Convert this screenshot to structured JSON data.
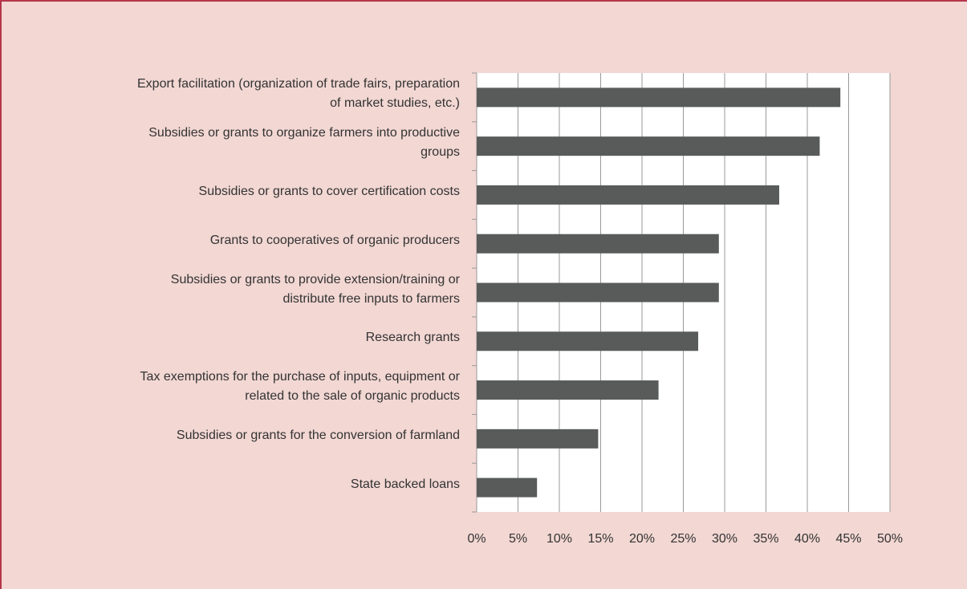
{
  "chart_data": {
    "type": "bar",
    "orientation": "horizontal",
    "categories": [
      "Export facilitation (organization of trade fairs, preparation\nof market studies, etc.)",
      "Subsidies or grants to organize farmers into productive\ngroups",
      "Subsidies or grants to cover certification costs",
      "Grants to cooperatives of organic producers",
      "Subsidies or grants to provide extension/training or\ndistribute free inputs to farmers",
      "Research grants",
      "Tax exemptions for the purchase of inputs, equipment or\nrelated to the sale of organic products",
      "Subsidies or grants for the conversion of farmland",
      "State backed loans"
    ],
    "values": [
      44,
      41.5,
      36.6,
      29.3,
      29.3,
      26.8,
      22,
      14.7,
      7.3
    ],
    "color": "#595b5b",
    "xlim": [
      0,
      50
    ],
    "xticks": [
      {
        "value": 0,
        "label": "0%"
      },
      {
        "value": 5,
        "label": "5%"
      },
      {
        "value": 10,
        "label": "10%"
      },
      {
        "value": 15,
        "label": "15%"
      },
      {
        "value": 20,
        "label": "20%"
      },
      {
        "value": 25,
        "label": "25%"
      },
      {
        "value": 30,
        "label": "30%"
      },
      {
        "value": 35,
        "label": "35%"
      },
      {
        "value": 40,
        "label": "40%"
      },
      {
        "value": 45,
        "label": "45%"
      },
      {
        "value": 50,
        "label": "50%"
      }
    ],
    "grid": true
  }
}
